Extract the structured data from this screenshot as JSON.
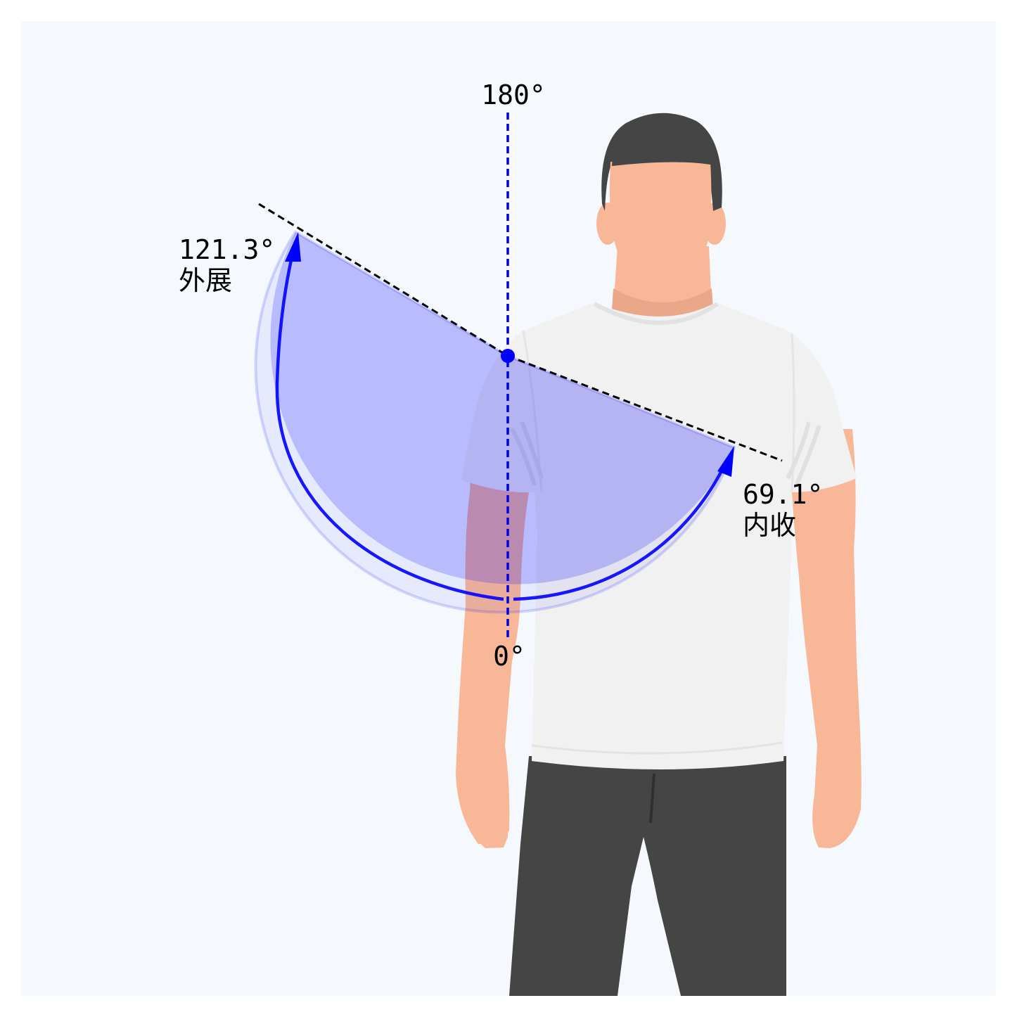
{
  "colors": {
    "page_background": "#ffffff",
    "panel_background": "#f5f9fe",
    "sector_fill": "#0000ff",
    "arc_stroke": "#0000ff",
    "reference_line": "#0000dd",
    "limit_line": "#000000",
    "skin": "#f8b898",
    "hair": "#454545",
    "shirt": "#f1f1f1",
    "pants": "#454545"
  },
  "diagram": {
    "top_label": "180°",
    "bottom_label": "0°",
    "abduction": {
      "angle_text": "121.3°",
      "name": "外展",
      "angle_deg": 121.3
    },
    "adduction": {
      "angle_text": "69.1°",
      "name": "内收",
      "angle_deg": 69.1
    }
  },
  "icons": {
    "pivot": "pivot-dot-icon",
    "arrowheads": "arrowhead-icon",
    "figure": "human-figure-illustration"
  }
}
